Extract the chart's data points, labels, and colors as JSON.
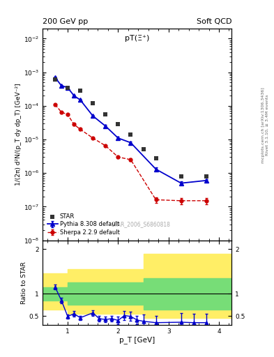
{
  "title_left": "200 GeV pp",
  "title_right": "Soft QCD",
  "plot_title": "pT(Ξ⁺)",
  "xlabel": "p_T [GeV]",
  "ylabel_main": "1/(2π) d²N/(p_T dy dp_T) [GeV⁻²]",
  "ylabel_ratio": "Ratio to STAR",
  "watermark": "STAR_2006_S6860818",
  "right_label1": "Rivet 3.1.10, ≥ 3.4M events",
  "right_label2": "mcplots.cern.ch [arXiv:1306.3436]",
  "star_x": [
    0.75,
    1.0,
    1.25,
    1.5,
    1.75,
    2.0,
    2.25,
    2.5,
    2.75,
    3.25,
    3.75
  ],
  "star_y": [
    0.0006,
    0.00035,
    0.00028,
    0.00012,
    5.5e-05,
    2.8e-05,
    1.4e-05,
    5e-06,
    2.8e-06,
    8e-07,
    8e-07
  ],
  "pythia_x": [
    0.75,
    0.875,
    1.0,
    1.125,
    1.25,
    1.5,
    1.75,
    2.0,
    2.25,
    2.75,
    3.25,
    3.75
  ],
  "pythia_y": [
    0.0007,
    0.0004,
    0.00035,
    0.0002,
    0.00015,
    5e-05,
    2.5e-05,
    1.1e-05,
    8e-06,
    1.3e-06,
    5e-07,
    6e-07
  ],
  "pythia_yerr_lo": [
    3e-05,
    2e-05,
    2e-05,
    1e-05,
    1e-05,
    3e-06,
    2e-06,
    1e-06,
    8e-07,
    1.5e-07,
    6e-08,
    7e-08
  ],
  "pythia_yerr_hi": [
    3e-05,
    2e-05,
    2e-05,
    1e-05,
    1e-05,
    3e-06,
    2e-06,
    1e-06,
    8e-07,
    1.5e-07,
    6e-08,
    7e-08
  ],
  "sherpa_x": [
    0.75,
    0.875,
    1.0,
    1.125,
    1.25,
    1.5,
    1.75,
    2.0,
    2.25,
    2.75,
    3.25,
    3.75
  ],
  "sherpa_y": [
    0.00011,
    6.5e-05,
    5.5e-05,
    2.8e-05,
    2e-05,
    1.1e-05,
    6.5e-06,
    3e-06,
    2.5e-06,
    1.6e-07,
    1.5e-07,
    1.5e-07
  ],
  "sherpa_yerr_lo": [
    5e-06,
    3e-06,
    3e-06,
    1.5e-06,
    1e-06,
    6e-07,
    3e-07,
    2e-07,
    2e-07,
    3e-08,
    3e-08,
    3e-08
  ],
  "sherpa_yerr_hi": [
    5e-06,
    3e-06,
    3e-06,
    1.5e-06,
    1e-06,
    6e-07,
    3e-07,
    2e-07,
    2e-07,
    3e-08,
    3e-08,
    3e-08
  ],
  "ratio_pythia_x": [
    0.75,
    0.875,
    1.0,
    1.125,
    1.25,
    1.5,
    1.625,
    1.75,
    1.875,
    2.0,
    2.125,
    2.25,
    2.375,
    2.5,
    2.75,
    3.25,
    3.5,
    3.75
  ],
  "ratio_pythia_y": [
    1.15,
    0.85,
    0.49,
    0.55,
    0.46,
    0.57,
    0.44,
    0.42,
    0.44,
    0.4,
    0.51,
    0.49,
    0.41,
    0.38,
    0.35,
    0.36,
    0.35,
    0.35
  ],
  "ratio_pythia_yerr": [
    0.06,
    0.06,
    0.05,
    0.06,
    0.05,
    0.06,
    0.06,
    0.06,
    0.06,
    0.08,
    0.1,
    0.1,
    0.1,
    0.15,
    0.15,
    0.2,
    0.2,
    0.2
  ],
  "band_edges": [
    0.5,
    0.75,
    1.0,
    1.25,
    1.5,
    1.75,
    2.0,
    2.5,
    2.75,
    3.5,
    4.25
  ],
  "band_green_lo": [
    0.85,
    0.85,
    0.75,
    0.75,
    0.75,
    0.75,
    0.75,
    0.65,
    0.65,
    0.65,
    0.65
  ],
  "band_green_hi": [
    1.15,
    1.15,
    1.25,
    1.25,
    1.25,
    1.25,
    1.25,
    1.35,
    1.35,
    1.35,
    1.35
  ],
  "band_yellow_lo": [
    0.65,
    0.65,
    0.55,
    0.55,
    0.55,
    0.55,
    0.55,
    0.45,
    0.45,
    0.45,
    0.45
  ],
  "band_yellow_hi": [
    1.45,
    1.45,
    1.55,
    1.55,
    1.55,
    1.55,
    1.55,
    1.9,
    1.9,
    1.9,
    1.9
  ],
  "star_color": "#333333",
  "pythia_color": "#0000cc",
  "sherpa_color": "#cc0000",
  "green_band_color": "#77dd77",
  "yellow_band_color": "#ffee66",
  "ylim_main": [
    1e-08,
    0.02
  ],
  "ylim_ratio": [
    0.3,
    2.2
  ],
  "xlim": [
    0.5,
    4.25
  ]
}
